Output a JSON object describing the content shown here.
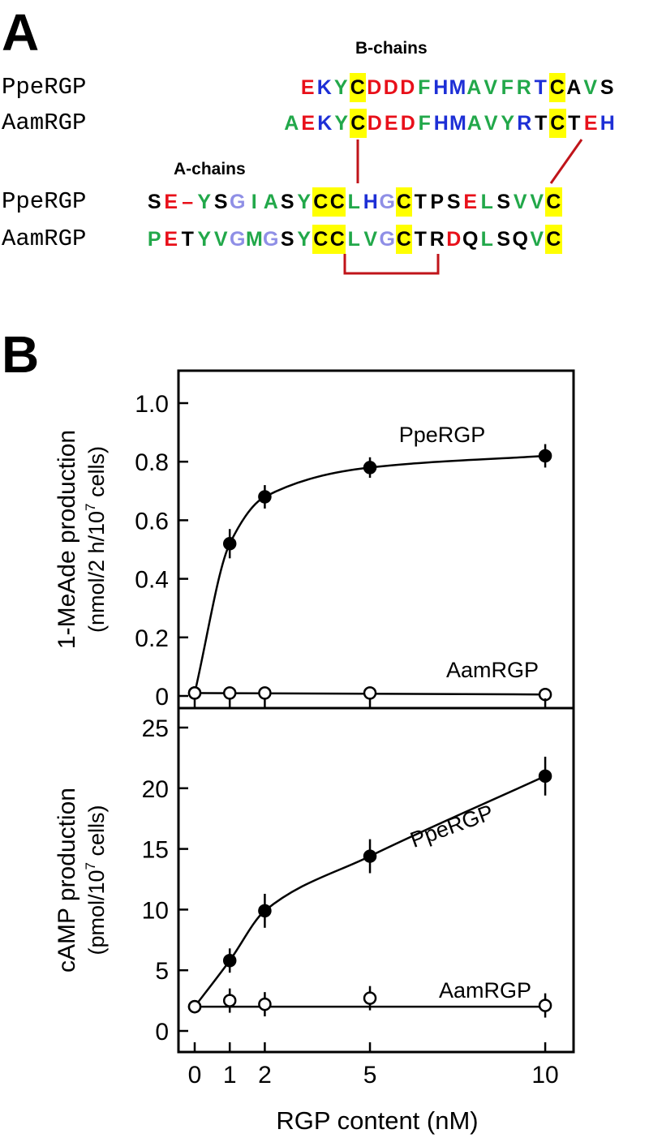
{
  "figure": {
    "panel_a_label": "A",
    "panel_b_label": "B"
  },
  "alignment": {
    "b_chains_title": "B-chains",
    "a_chains_title": "A-chains",
    "colors": {
      "red": "#e8101a",
      "blue": "#1d2fd6",
      "green": "#22a84a",
      "lavender": "#8f8fe6",
      "black": "#000000",
      "highlight": "#ffff00",
      "bond": "#c0141a"
    },
    "b_chain_rows": [
      {
        "name": "PpeRGP",
        "sequence": "EKYCDDDFHMAVFRTCAVS",
        "colors": [
          "red",
          "blue",
          "green",
          "black",
          "red",
          "red",
          "red",
          "green",
          "blue",
          "blue",
          "green",
          "green",
          "green",
          "green",
          "blue",
          "black",
          "black",
          "green",
          "black"
        ],
        "highlight": [
          3,
          15
        ]
      },
      {
        "name": "AamRGP",
        "sequence": "AEKYCDEDFHMAVYRTCTEH",
        "colors": [
          "green",
          "red",
          "blue",
          "green",
          "black",
          "red",
          "red",
          "red",
          "green",
          "blue",
          "blue",
          "green",
          "green",
          "green",
          "blue",
          "black",
          "black",
          "black",
          "red",
          "blue"
        ],
        "highlight": [
          4,
          16
        ]
      }
    ],
    "a_chain_rows": [
      {
        "name": "PpeRGP",
        "sequence": "SE-YSGIASYCCLHGCTPSELSVVC",
        "colors": [
          "black",
          "red",
          "red",
          "green",
          "black",
          "lavender",
          "green",
          "green",
          "black",
          "green",
          "black",
          "black",
          "green",
          "blue",
          "lavender",
          "black",
          "black",
          "black",
          "black",
          "red",
          "green",
          "black",
          "green",
          "green",
          "black"
        ],
        "highlight": [
          10,
          11,
          15,
          24
        ]
      },
      {
        "name": "AamRGP",
        "sequence": "PETYVGMGSYCCLVGCTRDQLSQVC",
        "colors": [
          "green",
          "red",
          "black",
          "green",
          "green",
          "lavender",
          "green",
          "lavender",
          "black",
          "green",
          "black",
          "black",
          "green",
          "green",
          "lavender",
          "black",
          "black",
          "black",
          "red",
          "black",
          "green",
          "black",
          "black",
          "green",
          "black"
        ],
        "highlight": [
          10,
          11,
          15,
          24
        ]
      }
    ]
  },
  "chart_data": [
    {
      "type": "line",
      "ylabel_line1": "1-MeAde production",
      "ylabel_line2_prefix": "(nmol/2 h/10",
      "ylabel_line2_sup": "7",
      "ylabel_line2_suffix": " cells)",
      "ylim": [
        0,
        1.05
      ],
      "yticks": [
        0,
        0.2,
        0.4,
        0.6,
        0.8,
        1.0
      ],
      "ytick_labels": [
        "0",
        "0.2",
        "0.4",
        "0.6",
        "0.8",
        "1.0"
      ],
      "series": [
        {
          "name": "PpeRGP",
          "marker": "filled",
          "x": [
            0,
            1,
            2,
            5,
            10
          ],
          "y": [
            0.01,
            0.52,
            0.68,
            0.78,
            0.82
          ],
          "err": [
            0,
            0.05,
            0.04,
            0.035,
            0.04
          ]
        },
        {
          "name": "AamRGP",
          "marker": "open",
          "x": [
            0,
            1,
            2,
            5,
            10
          ],
          "y": [
            0.01,
            0.01,
            0.01,
            0.01,
            0.005
          ],
          "err": [
            0,
            0,
            0,
            0,
            0
          ]
        }
      ]
    },
    {
      "type": "line",
      "xlabel": "RGP content (nM)",
      "ylabel_line1": "cAMP production",
      "ylabel_line2_prefix": "(pmol/10",
      "ylabel_line2_sup": "7",
      "ylabel_line2_suffix": " cells)",
      "ylim": [
        -1,
        27
      ],
      "yticks": [
        0,
        5,
        10,
        15,
        20,
        25
      ],
      "ytick_labels": [
        "0",
        "5",
        "10",
        "15",
        "20",
        "25"
      ],
      "xticks": [
        0,
        1,
        2,
        5,
        10
      ],
      "xtick_labels": [
        "0",
        "1",
        "2",
        "5",
        "10"
      ],
      "series": [
        {
          "name": "PpeRGP",
          "marker": "filled",
          "x": [
            0,
            1,
            2,
            5,
            10
          ],
          "y": [
            2,
            5.8,
            9.9,
            14.4,
            21
          ],
          "err": [
            0,
            1,
            1.4,
            1.4,
            1.6
          ]
        },
        {
          "name": "AamRGP",
          "marker": "open",
          "x": [
            0,
            1,
            2,
            5,
            10
          ],
          "y": [
            2,
            2.5,
            2.2,
            2.7,
            2.1
          ],
          "err": [
            0,
            1,
            1,
            1,
            1
          ]
        }
      ]
    }
  ]
}
